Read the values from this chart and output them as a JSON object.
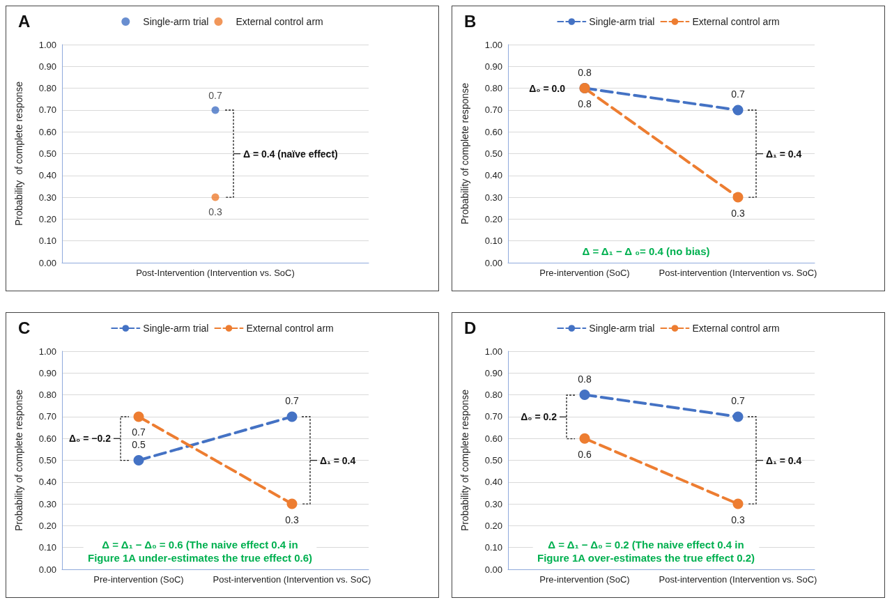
{
  "chart_data": [
    {
      "type": "scatter",
      "title": "A",
      "ylabel": "Probability  of complete response",
      "categories": [
        "Post-Intervention (Intervention vs. SoC)"
      ],
      "series": [
        {
          "name": "Single-arm trial",
          "color": "#4472c4",
          "values": [
            0.7
          ]
        },
        {
          "name": "External control arm",
          "color": "#ed7d31",
          "values": [
            0.3
          ]
        }
      ],
      "ylim": [
        0,
        1
      ],
      "yticks": [
        {
          "value": 0,
          "label": "0.00"
        },
        {
          "value": 0.1,
          "label": "0.10"
        },
        {
          "value": 0.2,
          "label": "0.20"
        },
        {
          "value": 0.3,
          "label": "0.30"
        },
        {
          "value": 0.4,
          "label": "0.40"
        },
        {
          "value": 0.5,
          "label": "0.50"
        },
        {
          "value": 0.6,
          "label": "0.60"
        },
        {
          "value": 0.7,
          "label": "0.70"
        },
        {
          "value": 0.8,
          "label": "0.80"
        },
        {
          "value": 0.9,
          "label": "0.90"
        },
        {
          "value": 1,
          "label": "1.00"
        }
      ],
      "grid": "y",
      "legend": "top",
      "marker": "circle",
      "data_labels": true,
      "annotations": [
        "Δ = 0.4 (naïve effect)"
      ]
    },
    {
      "type": "line",
      "title": "B",
      "ylabel": "Probability of complete response",
      "categories": [
        "Pre-intervention (SoC)",
        "Post-intervention (Intervention vs. SoC)"
      ],
      "series": [
        {
          "name": "Single-arm trial",
          "color": "#4472c4",
          "values": [
            0.8,
            0.7
          ]
        },
        {
          "name": "External control arm",
          "color": "#ed7d31",
          "values": [
            0.8,
            0.3
          ]
        }
      ],
      "ylim": [
        0,
        1
      ],
      "yticks": [
        {
          "value": 0,
          "label": "0.00"
        },
        {
          "value": 0.1,
          "label": "0.10"
        },
        {
          "value": 0.2,
          "label": "0.20"
        },
        {
          "value": 0.3,
          "label": "0.30"
        },
        {
          "value": 0.4,
          "label": "0.40"
        },
        {
          "value": 0.5,
          "label": "0.50"
        },
        {
          "value": 0.6,
          "label": "0.60"
        },
        {
          "value": 0.7,
          "label": "0.70"
        },
        {
          "value": 0.8,
          "label": "0.80"
        },
        {
          "value": 0.9,
          "label": "0.90"
        },
        {
          "value": 1,
          "label": "1.00"
        }
      ],
      "grid": "y",
      "legend": "top",
      "marker": "circle",
      "line_style": "dashed",
      "data_labels": true,
      "annotations": [
        "Δ₀ = 0.0",
        "Δ₁ = 0.4",
        "Δ = Δ₁ − Δ ₀= 0.4 (no bias)"
      ]
    },
    {
      "type": "line",
      "title": "C",
      "ylabel": "Probability of complete response",
      "categories": [
        "Pre-intervention (SoC)",
        "Post-intervention (Intervention vs. SoC)"
      ],
      "series": [
        {
          "name": "Single-arm trial",
          "color": "#4472c4",
          "values": [
            0.5,
            0.7
          ]
        },
        {
          "name": "External control arm",
          "color": "#ed7d31",
          "values": [
            0.7,
            0.3
          ]
        }
      ],
      "ylim": [
        0,
        1
      ],
      "yticks": [
        {
          "value": 0,
          "label": "0.00"
        },
        {
          "value": 0.1,
          "label": "0.10"
        },
        {
          "value": 0.2,
          "label": "0.20"
        },
        {
          "value": 0.3,
          "label": "0.30"
        },
        {
          "value": 0.4,
          "label": "0.40"
        },
        {
          "value": 0.5,
          "label": "0.50"
        },
        {
          "value": 0.6,
          "label": "0.60"
        },
        {
          "value": 0.7,
          "label": "0.70"
        },
        {
          "value": 0.8,
          "label": "0.80"
        },
        {
          "value": 0.9,
          "label": "0.90"
        },
        {
          "value": 1,
          "label": "1.00"
        }
      ],
      "grid": "y",
      "legend": "top",
      "marker": "circle",
      "line_style": "dashed",
      "data_labels": true,
      "annotations": [
        "Δ₀ = −0.2",
        "Δ₁ = 0.4",
        "Δ = Δ₁ − Δ₀ = 0.6 (The naive effect 0.4 in\nFigure 1A under-estimates the true effect 0.6)"
      ]
    },
    {
      "type": "line",
      "title": "D",
      "ylabel": "Probability of complete response",
      "categories": [
        "Pre-intervention (SoC)",
        "Post-intervention (Intervention vs. SoC)"
      ],
      "series": [
        {
          "name": "Single-arm trial",
          "color": "#4472c4",
          "values": [
            0.8,
            0.7
          ]
        },
        {
          "name": "External control arm",
          "color": "#ed7d31",
          "values": [
            0.6,
            0.3
          ]
        }
      ],
      "ylim": [
        0,
        1
      ],
      "yticks": [
        {
          "value": 0,
          "label": "0.00"
        },
        {
          "value": 0.1,
          "label": "0.10"
        },
        {
          "value": 0.2,
          "label": "0.20"
        },
        {
          "value": 0.3,
          "label": "0.30"
        },
        {
          "value": 0.4,
          "label": "0.40"
        },
        {
          "value": 0.5,
          "label": "0.50"
        },
        {
          "value": 0.6,
          "label": "0.60"
        },
        {
          "value": 0.7,
          "label": "0.70"
        },
        {
          "value": 0.8,
          "label": "0.80"
        },
        {
          "value": 0.9,
          "label": "0.90"
        },
        {
          "value": 1,
          "label": "1.00"
        }
      ],
      "grid": "y",
      "legend": "top",
      "marker": "circle",
      "line_style": "dashed",
      "data_labels": true,
      "annotations": [
        "Δ₀ = 0.2",
        "Δ₁ = 0.4",
        "Δ = Δ₁ − Δ₀ = 0.2 (The naive effect 0.4 in\nFigure 1A over-estimates the true effect 0.2)"
      ]
    }
  ]
}
